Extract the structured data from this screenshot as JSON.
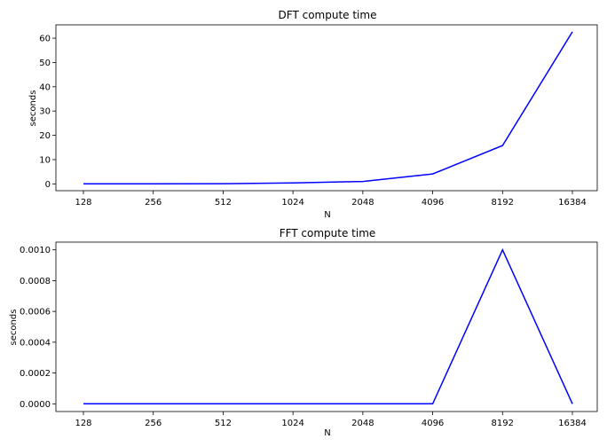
{
  "chart_data": [
    {
      "type": "line",
      "title": "DFT compute time",
      "xlabel": "N",
      "ylabel": "seconds",
      "categories": [
        "128",
        "256",
        "512",
        "1024",
        "2048",
        "4096",
        "8192",
        "16384"
      ],
      "values": [
        0.02,
        0.0,
        0.1,
        0.4,
        1.0,
        4.1,
        15.8,
        62.6
      ],
      "ylim": [
        -2.8,
        65.5
      ],
      "yticks": [
        "0",
        "10",
        "20",
        "30",
        "40",
        "50",
        "60"
      ],
      "ytick_values": [
        0,
        10,
        20,
        30,
        40,
        50,
        60
      ],
      "line_color": "#0000ff",
      "grid": false
    },
    {
      "type": "line",
      "title": "FFT compute time",
      "xlabel": "N",
      "ylabel": "seconds",
      "categories": [
        "128",
        "256",
        "512",
        "1024",
        "2048",
        "4096",
        "8192",
        "16384"
      ],
      "values": [
        0.0,
        0.0,
        0.0,
        0.0,
        0.0,
        0.0,
        0.001,
        0.0
      ],
      "ylim": [
        -5e-05,
        0.00105
      ],
      "yticks": [
        "0.0000",
        "0.0002",
        "0.0004",
        "0.0006",
        "0.0008",
        "0.0010"
      ],
      "ytick_values": [
        0.0,
        0.0002,
        0.0004,
        0.0006,
        0.0008,
        0.001
      ],
      "line_color": "#0000ff",
      "grid": false
    }
  ]
}
